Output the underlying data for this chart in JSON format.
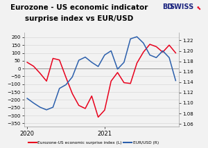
{
  "title_line1": "Eurozone - US economic indicator",
  "title_line2": "surprise index vs EUR/USD",
  "title_fontsize": 7.5,
  "bg_color": "#f2f2f2",
  "plot_bg_color": "#f2f2f2",
  "left_ylim": [
    -370,
    230
  ],
  "right_ylim": [
    1.055,
    1.235
  ],
  "left_yticks": [
    -350,
    -300,
    -250,
    -200,
    -150,
    -100,
    -50,
    0,
    50,
    100,
    150,
    200
  ],
  "right_yticks": [
    1.06,
    1.08,
    1.1,
    1.12,
    1.14,
    1.16,
    1.18,
    1.2,
    1.22
  ],
  "left_color": "#e8001c",
  "right_color": "#2b5fac",
  "legend_labels": [
    "Eurozone-US economic surprise index (L)",
    "EUR/USD (R)"
  ],
  "x_red": [
    0,
    1,
    2,
    3,
    4,
    5,
    6,
    7,
    8,
    9,
    10,
    11,
    12,
    13,
    14,
    15,
    16,
    17,
    18,
    19,
    20,
    21,
    22,
    23
  ],
  "y_red": [
    40,
    15,
    -30,
    -80,
    65,
    55,
    -55,
    -160,
    -235,
    -255,
    -175,
    -310,
    -265,
    -80,
    -25,
    -90,
    -95,
    35,
    105,
    155,
    140,
    105,
    150,
    100
  ],
  "x_blue": [
    0,
    1,
    2,
    3,
    4,
    5,
    6,
    7,
    8,
    9,
    10,
    11,
    12,
    13,
    14,
    15,
    16,
    17,
    18,
    19,
    20,
    21,
    22,
    23
  ],
  "y_blue": [
    1.109,
    1.1,
    1.092,
    1.087,
    1.092,
    1.128,
    1.135,
    1.15,
    1.182,
    1.188,
    1.178,
    1.17,
    1.192,
    1.2,
    1.165,
    1.178,
    1.223,
    1.227,
    1.215,
    1.192,
    1.187,
    1.2,
    1.187,
    1.143
  ],
  "xtick_positions": [
    0,
    12
  ],
  "xtick_labels": [
    "2020",
    "2021"
  ],
  "grid_color": "#d8d8d8",
  "zero_line_color": "#888888",
  "bd_color": "#1a237e",
  "swiss_color": "#1a237e",
  "arrow_color": "#e8001c"
}
